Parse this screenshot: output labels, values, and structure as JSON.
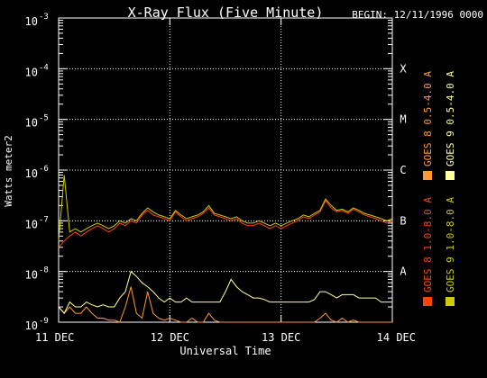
{
  "chart_data": {
    "type": "line",
    "title": "X-Ray Flux (Five Minute)",
    "subtitle": "BEGIN: 12/11/1996 0000",
    "xlabel": "Universal Time",
    "ylabel": "Watts meter2",
    "y_scale": "log",
    "ylim": [
      1e-09,
      0.001
    ],
    "y_ticks": [
      {
        "value": 0.001,
        "base": "10",
        "exp": "-3"
      },
      {
        "value": 0.0001,
        "base": "10",
        "exp": "-4"
      },
      {
        "value": 1e-05,
        "base": "10",
        "exp": "-5"
      },
      {
        "value": 1e-06,
        "base": "10",
        "exp": "-6"
      },
      {
        "value": 1e-07,
        "base": "10",
        "exp": "-7"
      },
      {
        "value": 1e-08,
        "base": "10",
        "exp": "-8"
      },
      {
        "value": 1e-09,
        "base": "10",
        "exp": "-9"
      }
    ],
    "x_ticks": [
      {
        "day": 0,
        "label": "11 DEC"
      },
      {
        "day": 1,
        "label": "12 DEC"
      },
      {
        "day": 2,
        "label": "13 DEC"
      },
      {
        "day": 3,
        "label": "14 DEC"
      }
    ],
    "xlim": [
      0,
      3
    ],
    "class_labels": [
      {
        "label": "X",
        "value": 0.0001
      },
      {
        "label": "M",
        "value": 1e-05
      },
      {
        "label": "C",
        "value": 1e-06
      },
      {
        "label": "B",
        "value": 1e-07
      },
      {
        "label": "A",
        "value": 1e-08
      }
    ],
    "grid": true,
    "legend_position": "right",
    "series": [
      {
        "name": "GOES 8 1.0-8.0 A",
        "color": "#ff4500",
        "x": [
          0,
          0.05,
          0.1,
          0.15,
          0.2,
          0.25,
          0.3,
          0.35,
          0.4,
          0.45,
          0.5,
          0.55,
          0.6,
          0.65,
          0.7,
          0.75,
          0.8,
          0.85,
          0.9,
          0.95,
          1.0,
          1.05,
          1.1,
          1.15,
          1.2,
          1.25,
          1.3,
          1.35,
          1.4,
          1.45,
          1.5,
          1.55,
          1.6,
          1.65,
          1.7,
          1.75,
          1.8,
          1.85,
          1.9,
          1.95,
          2.0,
          2.05,
          2.1,
          2.15,
          2.2,
          2.25,
          2.3,
          2.35,
          2.4,
          2.45,
          2.5,
          2.55,
          2.6,
          2.65,
          2.7,
          2.75,
          2.8,
          2.85,
          2.9,
          2.95,
          3.0
        ],
        "values": [
          3e-08,
          4e-08,
          5e-08,
          6e-08,
          5e-08,
          6e-08,
          7e-08,
          8e-08,
          7e-08,
          6e-08,
          7e-08,
          9e-08,
          8e-08,
          1e-07,
          9e-08,
          1.3e-07,
          1.6e-07,
          1.3e-07,
          1.2e-07,
          1.1e-07,
          1e-07,
          1.5e-07,
          1.2e-07,
          1e-07,
          1.1e-07,
          1.2e-07,
          1.4e-07,
          1.8e-07,
          1.3e-07,
          1.2e-07,
          1.1e-07,
          1e-07,
          1.1e-07,
          9e-08,
          8e-08,
          8e-08,
          9e-08,
          8e-08,
          7e-08,
          8e-08,
          7e-08,
          8e-08,
          9e-08,
          1e-07,
          1.2e-07,
          1.1e-07,
          1.3e-07,
          1.5e-07,
          2.5e-07,
          1.8e-07,
          1.5e-07,
          1.6e-07,
          1.4e-07,
          1.7e-07,
          1.5e-07,
          1.3e-07,
          1.2e-07,
          1.1e-07,
          1e-07,
          9e-08,
          1e-07
        ]
      },
      {
        "name": "GOES 8 0.5-4.0 A",
        "color": "#ff9933",
        "x": [
          0,
          0.05,
          0.1,
          0.15,
          0.2,
          0.25,
          0.3,
          0.35,
          0.4,
          0.45,
          0.5,
          0.55,
          0.6,
          0.65,
          0.7,
          0.75,
          0.8,
          0.85,
          0.9,
          0.95,
          1.0,
          1.05,
          1.1,
          1.15,
          1.2,
          1.25,
          1.3,
          1.35,
          1.4,
          1.45,
          1.5,
          1.55,
          1.6,
          1.65,
          1.7,
          1.75,
          1.8,
          1.85,
          1.9,
          1.95,
          2.0,
          2.05,
          2.1,
          2.15,
          2.2,
          2.25,
          2.3,
          2.35,
          2.4,
          2.45,
          2.5,
          2.55,
          2.6,
          2.65,
          2.7,
          2.75,
          2.8,
          2.85,
          2.9,
          2.95,
          3.0
        ],
        "values": [
          2e-09,
          1.5e-09,
          2e-09,
          1.5e-09,
          1.5e-09,
          2e-09,
          1.5e-09,
          1.2e-09,
          1.2e-09,
          1.1e-09,
          1.1e-09,
          1e-09,
          2e-09,
          5e-09,
          1.5e-09,
          1.2e-09,
          4e-09,
          1.5e-09,
          1.2e-09,
          1.1e-09,
          1.2e-09,
          1.1e-09,
          1e-09,
          1e-09,
          1.2e-09,
          1e-09,
          1e-09,
          1.5e-09,
          1.1e-09,
          1e-09,
          1e-09,
          1e-09,
          1e-09,
          1e-09,
          1e-09,
          1e-09,
          1e-09,
          1e-09,
          1e-09,
          1e-09,
          1e-09,
          1e-09,
          1e-09,
          1e-09,
          1e-09,
          1e-09,
          1e-09,
          1.2e-09,
          1.5e-09,
          1.1e-09,
          1e-09,
          1.2e-09,
          1e-09,
          1.1e-09,
          1e-09,
          1e-09,
          1e-09,
          1e-09,
          1e-09,
          1e-09,
          1e-09
        ]
      },
      {
        "name": "GOES 9 1.0-8.0 A",
        "color": "#cccc00",
        "x": [
          0,
          0.05,
          0.1,
          0.15,
          0.2,
          0.25,
          0.3,
          0.35,
          0.4,
          0.45,
          0.5,
          0.55,
          0.6,
          0.65,
          0.7,
          0.75,
          0.8,
          0.85,
          0.9,
          0.95,
          1.0,
          1.05,
          1.1,
          1.15,
          1.2,
          1.25,
          1.3,
          1.35,
          1.4,
          1.45,
          1.5,
          1.55,
          1.6,
          1.65,
          1.7,
          1.75,
          1.8,
          1.85,
          1.9,
          1.95,
          2.0,
          2.05,
          2.1,
          2.15,
          2.2,
          2.25,
          2.3,
          2.35,
          2.4,
          2.45,
          2.5,
          2.55,
          2.6,
          2.65,
          2.7,
          2.75,
          2.8,
          2.85,
          2.9,
          2.95,
          3.0
        ],
        "values": [
          4e-08,
          8e-07,
          6e-08,
          7e-08,
          6e-08,
          7e-08,
          8e-08,
          9e-08,
          8e-08,
          7e-08,
          8e-08,
          1e-07,
          9e-08,
          1.1e-07,
          1e-07,
          1.4e-07,
          1.8e-07,
          1.5e-07,
          1.3e-07,
          1.2e-07,
          1.1e-07,
          1.6e-07,
          1.3e-07,
          1.1e-07,
          1.2e-07,
          1.3e-07,
          1.5e-07,
          2e-07,
          1.4e-07,
          1.3e-07,
          1.2e-07,
          1.1e-07,
          1.2e-07,
          1e-07,
          9e-08,
          9e-08,
          1e-07,
          9e-08,
          8e-08,
          9e-08,
          8e-08,
          9e-08,
          1e-07,
          1.1e-07,
          1.3e-07,
          1.2e-07,
          1.4e-07,
          1.6e-07,
          2.7e-07,
          2e-07,
          1.6e-07,
          1.7e-07,
          1.5e-07,
          1.8e-07,
          1.6e-07,
          1.4e-07,
          1.3e-07,
          1.2e-07,
          1.1e-07,
          1e-07,
          1.1e-07
        ]
      },
      {
        "name": "GOES 9 0.5-4.0 A",
        "color": "#ffff99",
        "x": [
          0,
          0.05,
          0.1,
          0.15,
          0.2,
          0.25,
          0.3,
          0.35,
          0.4,
          0.45,
          0.5,
          0.55,
          0.6,
          0.65,
          0.7,
          0.75,
          0.8,
          0.85,
          0.9,
          0.95,
          1.0,
          1.05,
          1.1,
          1.15,
          1.2,
          1.25,
          1.3,
          1.35,
          1.4,
          1.45,
          1.5,
          1.55,
          1.6,
          1.65,
          1.7,
          1.75,
          1.8,
          1.85,
          1.9,
          1.95,
          2.0,
          2.05,
          2.1,
          2.15,
          2.2,
          2.25,
          2.3,
          2.35,
          2.4,
          2.45,
          2.5,
          2.55,
          2.6,
          2.65,
          2.7,
          2.75,
          2.8,
          2.85,
          2.9,
          2.95,
          3.0
        ],
        "values": [
          2e-09,
          1.5e-09,
          2.5e-09,
          2e-09,
          2e-09,
          2.5e-09,
          2.2e-09,
          2e-09,
          2.2e-09,
          2e-09,
          2e-09,
          3e-09,
          4e-09,
          1e-08,
          8e-09,
          6e-09,
          5e-09,
          4e-09,
          3e-09,
          2.5e-09,
          3e-09,
          2.5e-09,
          2.5e-09,
          3e-09,
          2.5e-09,
          2.5e-09,
          2.5e-09,
          2.5e-09,
          2.5e-09,
          2.5e-09,
          4e-09,
          7e-09,
          5e-09,
          4e-09,
          3.5e-09,
          3e-09,
          3e-09,
          2.8e-09,
          2.5e-09,
          2.5e-09,
          2.5e-09,
          2.5e-09,
          2.5e-09,
          2.5e-09,
          2.5e-09,
          2.5e-09,
          2.8e-09,
          4e-09,
          4e-09,
          3.5e-09,
          3e-09,
          3.5e-09,
          3.5e-09,
          3.5e-09,
          3e-09,
          3e-09,
          3e-09,
          3e-09,
          2.5e-09,
          2.5e-09,
          2.5e-09
        ]
      }
    ]
  }
}
